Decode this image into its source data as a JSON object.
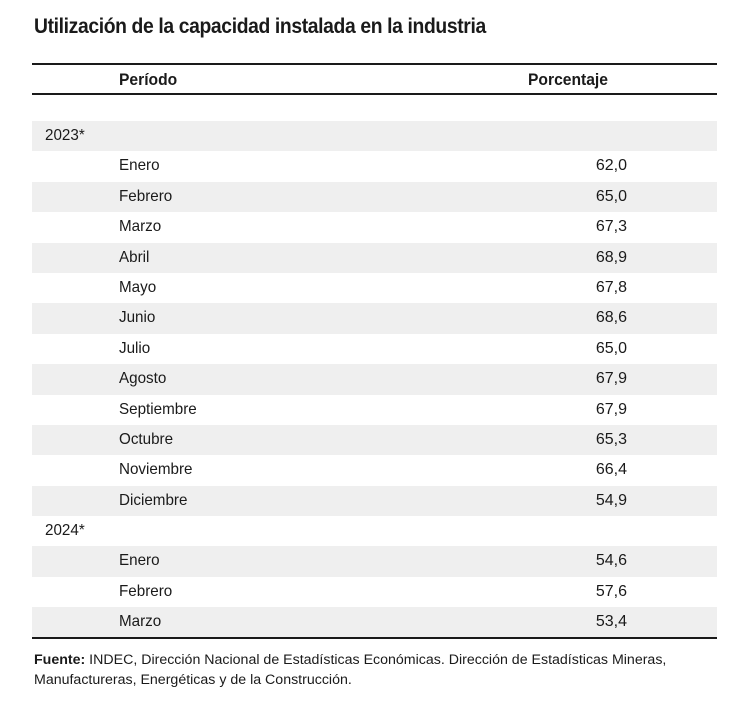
{
  "title": "Utilización de la capacidad instalada en la industria",
  "table": {
    "headers": {
      "periodo": "Período",
      "porcentaje": "Porcentaje"
    },
    "rows": [
      {
        "type": "year",
        "label": "2023*",
        "value": ""
      },
      {
        "type": "month",
        "label": "Enero",
        "value": "62,0"
      },
      {
        "type": "month",
        "label": "Febrero",
        "value": "65,0"
      },
      {
        "type": "month",
        "label": "Marzo",
        "value": "67,3"
      },
      {
        "type": "month",
        "label": "Abril",
        "value": "68,9"
      },
      {
        "type": "month",
        "label": "Mayo",
        "value": "67,8"
      },
      {
        "type": "month",
        "label": "Junio",
        "value": "68,6"
      },
      {
        "type": "month",
        "label": "Julio",
        "value": "65,0"
      },
      {
        "type": "month",
        "label": "Agosto",
        "value": "67,9"
      },
      {
        "type": "month",
        "label": "Septiembre",
        "value": "67,9"
      },
      {
        "type": "month",
        "label": "Octubre",
        "value": "65,3"
      },
      {
        "type": "month",
        "label": "Noviembre",
        "value": "66,4"
      },
      {
        "type": "month",
        "label": "Diciembre",
        "value": "54,9"
      },
      {
        "type": "year",
        "label": "2024*",
        "value": ""
      },
      {
        "type": "month",
        "label": "Enero",
        "value": "54,6"
      },
      {
        "type": "month",
        "label": "Febrero",
        "value": "57,6"
      },
      {
        "type": "month",
        "label": "Marzo",
        "value": "53,4"
      }
    ]
  },
  "footnote": {
    "label": "Fuente:",
    "text": " INDEC, Dirección Nacional de Estadísticas Económicas. Dirección de Estadísticas Mineras, Manufactureras, Energéticas y de la Construcción."
  },
  "colors": {
    "shaded_row": "#efefef",
    "rule": "#1a1a1a"
  }
}
